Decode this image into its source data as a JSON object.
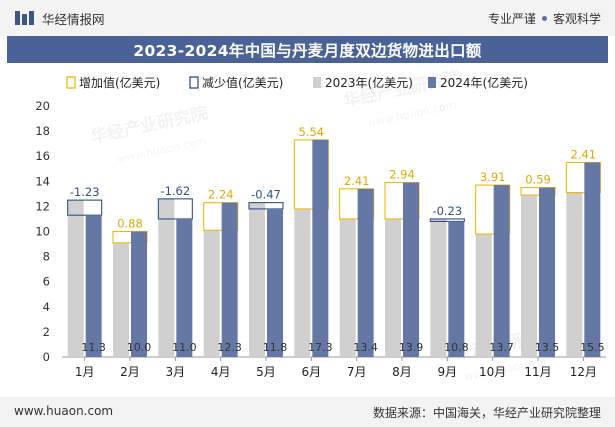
{
  "header": {
    "brand": "华经情报网",
    "tagline_left": "专业严谨",
    "tagline_right": "客观科学"
  },
  "title": "2023-2024年中国与丹麦月度双边货物进出口额",
  "footer": {
    "site": "www.huaon.com",
    "source": "数据来源：中国海关，华经产业研究院整理"
  },
  "watermarks": [
    "华经产业研究院",
    "www.huaon.com"
  ],
  "colors": {
    "series2023": "#d0d0d0",
    "series2024": "#6578a5",
    "increase": "#f2b800",
    "decrease": "#2f5280",
    "title_bg": "#4a6296"
  },
  "chart_data": {
    "type": "bar",
    "title": "2023-2024年中国与丹麦月度双边货物进出口额",
    "categories": [
      "1月",
      "2月",
      "3月",
      "4月",
      "5月",
      "6月",
      "7月",
      "8月",
      "9月",
      "10月",
      "11月",
      "12月"
    ],
    "series": [
      {
        "name": "2023年(亿美元)",
        "values": [
          12.5,
          9.1,
          12.6,
          10.1,
          12.3,
          11.8,
          11.0,
          11.0,
          11.0,
          9.8,
          12.9,
          13.1
        ]
      },
      {
        "name": "2024年(亿美元)",
        "values": [
          11.3,
          10.0,
          11.0,
          12.3,
          11.8,
          17.3,
          13.4,
          13.9,
          10.8,
          13.7,
          13.5,
          15.5
        ]
      }
    ],
    "value_labels_2024": [
      "11.3",
      "10.0",
      "11.0",
      "12.3",
      "11.8",
      "17.3",
      "13.4",
      "13.9",
      "10.8",
      "13.7",
      "13.5",
      "15.5"
    ],
    "change_labels": [
      "-1.23",
      "0.88",
      "-1.62",
      "2.24",
      "-0.47",
      "5.54",
      "2.41",
      "2.94",
      "-0.23",
      "3.91",
      "0.59",
      "2.41"
    ],
    "changes": [
      -1.23,
      0.88,
      -1.62,
      2.24,
      -0.47,
      5.54,
      2.41,
      2.94,
      -0.23,
      3.91,
      0.59,
      2.41
    ],
    "legend": [
      "增加值(亿美元)",
      "减少值(亿美元)",
      "2023年(亿美元)",
      "2024年(亿美元)"
    ],
    "legend_position": "top",
    "ylim": [
      0,
      20
    ],
    "yticks": [
      "0",
      "2",
      "4",
      "6",
      "8",
      "10",
      "12",
      "14",
      "16",
      "18",
      "20"
    ],
    "xlabel": "",
    "ylabel": ""
  }
}
